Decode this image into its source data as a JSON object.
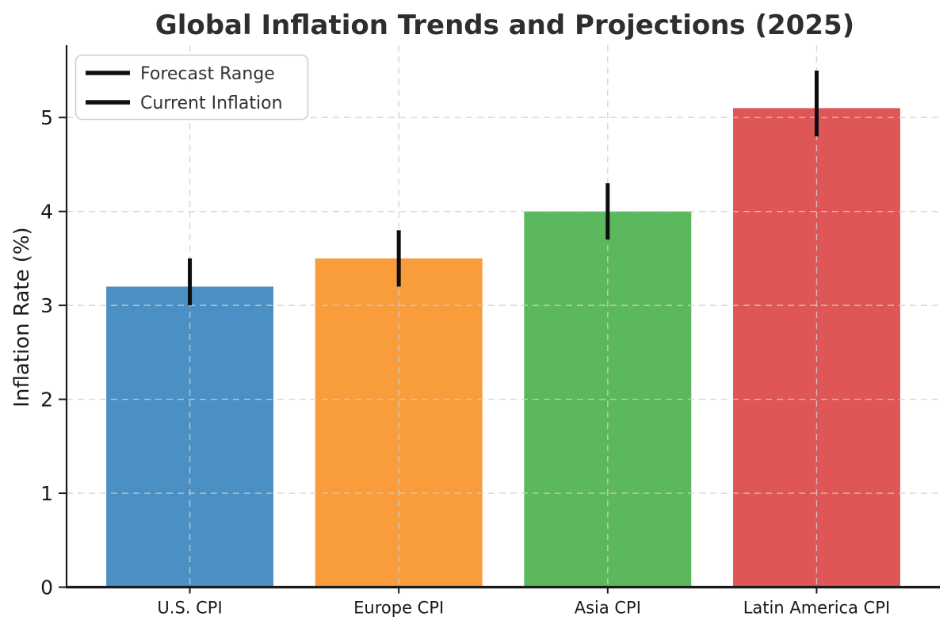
{
  "chart_data": {
    "type": "bar",
    "title": "Global Inflation Trends and Projections (2025)",
    "xlabel": "",
    "ylabel": "Inflation Rate (%)",
    "categories": [
      "U.S. CPI",
      "Europe CPI",
      "Asia CPI",
      "Latin America CPI"
    ],
    "series": [
      {
        "name": "Current Inflation",
        "values": [
          3.2,
          3.5,
          4.0,
          5.1
        ]
      }
    ],
    "error_bars": {
      "name": "Forecast Range",
      "low": [
        3.0,
        3.2,
        3.7,
        4.8
      ],
      "high": [
        3.5,
        3.8,
        4.3,
        5.5
      ]
    },
    "bar_colors": [
      "#4A90C4",
      "#F99C3C",
      "#5CB85C",
      "#DE5656"
    ],
    "yticks": [
      0,
      1,
      2,
      3,
      4,
      5
    ],
    "ylim": [
      0,
      5.77
    ],
    "grid": true,
    "grid_style": "dashed",
    "legend": {
      "position": "upper left",
      "entries": [
        "Forecast Range",
        "Current Inflation"
      ]
    },
    "colors": {
      "error_bar": "#0d0d0d",
      "grid": "#cfcfcf",
      "spine": "#1a1a1a",
      "title_text": "#2e2e2e"
    }
  }
}
